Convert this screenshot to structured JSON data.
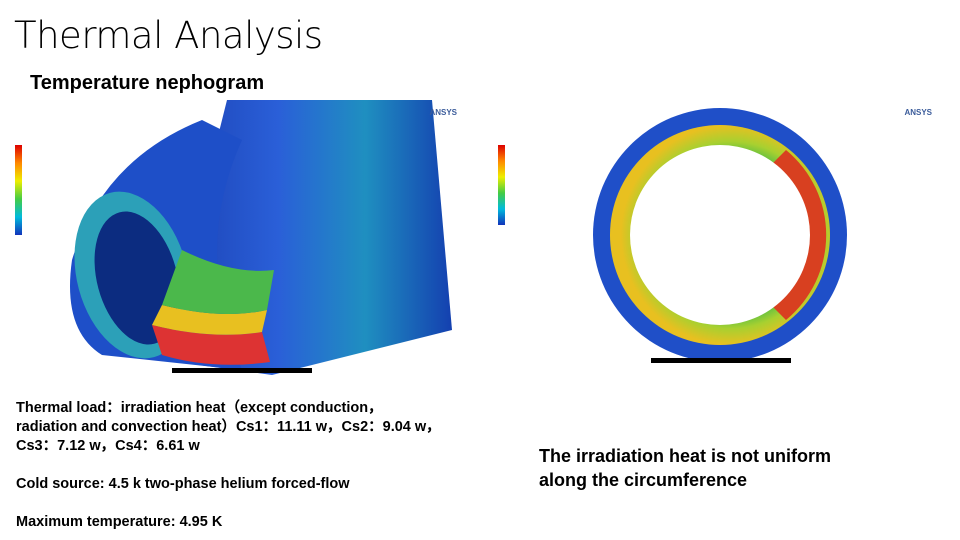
{
  "header": {
    "title": "Thermal Analysis",
    "subtitle": "Temperature nephogram"
  },
  "figures": [
    {
      "brand": "ANSYS"
    },
    {
      "brand": "ANSYS"
    }
  ],
  "left_text": {
    "load_lines": [
      "Thermal load：irradiation heat（except conduction，",
      "radiation and convection heat）Cs1：11.11 w，Cs2：9.04 w，",
      "Cs3：7.12 w，Cs4：6.61 w"
    ],
    "cold_source": "Cold source: 4.5 k two-phase helium forced-flow",
    "max_temperature": "Maximum temperature: 4.95 K"
  },
  "right_text": {
    "lines": [
      "The irradiation heat  is not uniform",
      "along the circumference"
    ]
  }
}
